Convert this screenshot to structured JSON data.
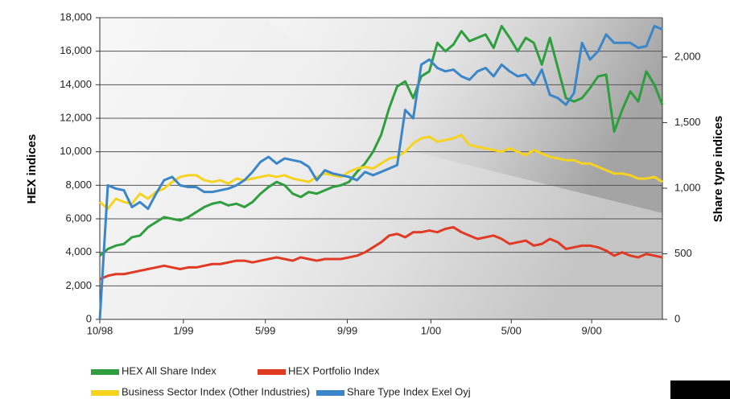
{
  "chart_data": {
    "type": "line",
    "y_label": "HEX indices",
    "y2_label": "Share type indices",
    "xlim": [
      0,
      70
    ],
    "xticks": [
      {
        "value": 0,
        "label": "10/98"
      },
      {
        "value": 10.4,
        "label": "1/99"
      },
      {
        "value": 20.6,
        "label": "5/99"
      },
      {
        "value": 30.8,
        "label": "9/99"
      },
      {
        "value": 41.2,
        "label": "1/00"
      },
      {
        "value": 51.2,
        "label": "5/00"
      },
      {
        "value": 61.2,
        "label": "9/00"
      }
    ],
    "ylim": [
      0,
      18000
    ],
    "yticks": [
      0,
      {
        "value": 2000,
        "label": "2,000"
      },
      {
        "value": 4000,
        "label": "4,000"
      },
      {
        "value": 6000,
        "label": "6,000"
      },
      {
        "value": 8000,
        "label": "8,000"
      },
      {
        "value": 10000,
        "label": "10,000"
      },
      {
        "value": 12000,
        "label": "12,000"
      },
      {
        "value": 14000,
        "label": "14,000"
      },
      {
        "value": 16000,
        "label": "16,000"
      },
      {
        "value": 18000,
        "label": "18,000"
      }
    ],
    "y2lim": [
      0,
      2300
    ],
    "y2ticks": [
      0,
      500,
      {
        "value": 1000,
        "label": "1,000"
      },
      {
        "value": 1500,
        "label": "1,500"
      },
      {
        "value": 2000,
        "label": "2,000"
      }
    ],
    "grid": true,
    "legend": "bottom",
    "series": [
      {
        "name": "HEX All Share Index",
        "color": "#2e9e3e",
        "values": [
          3800,
          4200,
          4400,
          4500,
          4900,
          5000,
          5500,
          5800,
          6100,
          6000,
          5900,
          6100,
          6400,
          6700,
          6900,
          7000,
          6800,
          6900,
          6700,
          7000,
          7500,
          7900,
          8200,
          8000,
          7500,
          7300,
          7600,
          7500,
          7700,
          7900,
          8000,
          8200,
          8800,
          9300,
          10000,
          11000,
          12600,
          13900,
          14200,
          13200,
          14500,
          14800,
          16500,
          16000,
          16400,
          17200,
          16600,
          16800,
          17000,
          16200,
          17500,
          16800,
          16000,
          16800,
          16500,
          15200,
          16800,
          15000,
          13200,
          13000,
          13200,
          13800,
          14500,
          14600,
          11200,
          12500,
          13600,
          13000,
          14800,
          14000,
          12800
        ]
      },
      {
        "name": "HEX Portfolio Index",
        "color": "#e03a25",
        "values": [
          2400,
          2600,
          2700,
          2700,
          2800,
          2900,
          3000,
          3100,
          3200,
          3100,
          3000,
          3100,
          3100,
          3200,
          3300,
          3300,
          3400,
          3500,
          3500,
          3400,
          3500,
          3600,
          3700,
          3600,
          3500,
          3700,
          3600,
          3500,
          3600,
          3600,
          3600,
          3700,
          3800,
          4000,
          4300,
          4600,
          5000,
          5100,
          4900,
          5200,
          5200,
          5300,
          5200,
          5400,
          5500,
          5200,
          5000,
          4800,
          4900,
          5000,
          4800,
          4500,
          4600,
          4700,
          4400,
          4500,
          4800,
          4600,
          4200,
          4300,
          4400,
          4400,
          4300,
          4100,
          3800,
          4000,
          3800,
          3700,
          3900,
          3800,
          3700
        ]
      },
      {
        "name": "Business Sector Index (Other Industries)",
        "color": "#f5d31f",
        "values": [
          7000,
          6600,
          7200,
          7000,
          6900,
          7500,
          7200,
          7600,
          7800,
          8200,
          8500,
          8600,
          8600,
          8300,
          8200,
          8300,
          8100,
          8400,
          8300,
          8400,
          8500,
          8600,
          8500,
          8600,
          8400,
          8300,
          8200,
          8500,
          8700,
          8600,
          8500,
          8800,
          9000,
          9100,
          9000,
          9300,
          9600,
          9700,
          10000,
          10500,
          10800,
          10900,
          10600,
          10700,
          10800,
          11000,
          10400,
          10300,
          10200,
          10100,
          10000,
          10200,
          10000,
          9800,
          10100,
          9900,
          9700,
          9600,
          9500,
          9500,
          9300,
          9300,
          9100,
          8900,
          8700,
          8700,
          8600,
          8400,
          8400,
          8500,
          8200
        ]
      },
      {
        "name": "Share Type Index Exel Oyj",
        "color": "#3a86c8",
        "axis": "y2",
        "values": [
          0,
          1022,
          997,
          984,
          856,
          894,
          843,
          958,
          1061,
          1086,
          1022,
          1009,
          1009,
          971,
          971,
          984,
          997,
          1022,
          1061,
          1124,
          1201,
          1239,
          1188,
          1227,
          1214,
          1201,
          1163,
          1061,
          1137,
          1112,
          1099,
          1086,
          1061,
          1124,
          1099,
          1124,
          1150,
          1176,
          1597,
          1533,
          1942,
          1981,
          1917,
          1891,
          1904,
          1853,
          1827,
          1891,
          1917,
          1853,
          1942,
          1891,
          1853,
          1866,
          1789,
          1904,
          1712,
          1687,
          1636,
          1725,
          2108,
          1981,
          2044,
          2172,
          2108,
          2108,
          2108,
          2070,
          2083,
          2236,
          2211
        ]
      }
    ]
  }
}
